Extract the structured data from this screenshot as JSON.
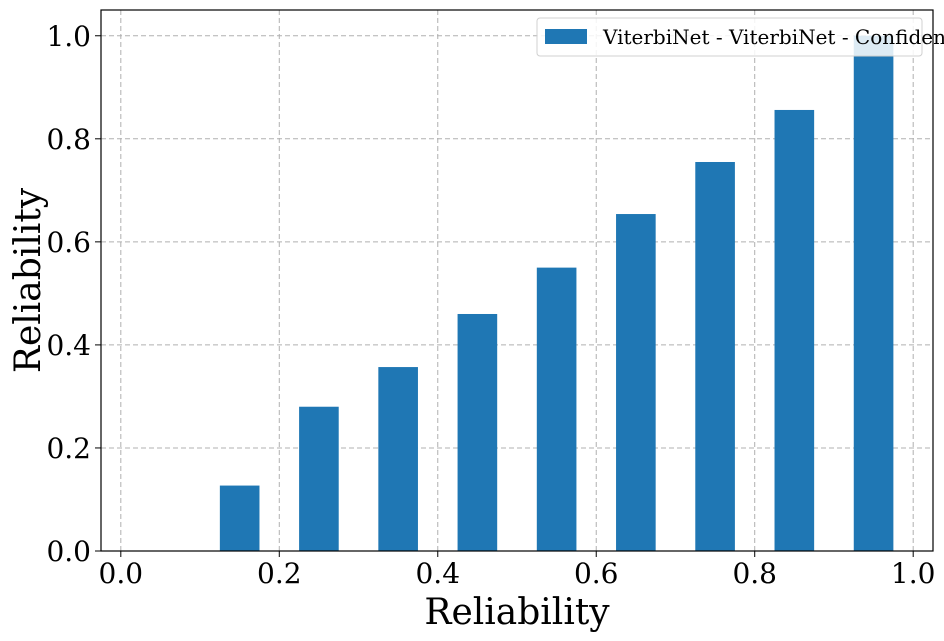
{
  "chart_data": {
    "type": "bar",
    "xlabel": "Reliability",
    "ylabel": "Reliability",
    "xlim": [
      -0.025,
      1.025
    ],
    "ylim": [
      0,
      1.05
    ],
    "xticks": [
      "0.0",
      "0.2",
      "0.4",
      "0.6",
      "0.8",
      "1.0"
    ],
    "yticks": [
      "0.0",
      "0.2",
      "0.4",
      "0.6",
      "0.8",
      "1.0"
    ],
    "grid": true,
    "legend_position": "top-right",
    "bar_width": 0.05,
    "series": [
      {
        "name": "ViterbiNet - ViterbiNet - Confidence",
        "color": "#1f77b4",
        "x": [
          0.15,
          0.25,
          0.35,
          0.45,
          0.55,
          0.65,
          0.75,
          0.85,
          0.95
        ],
        "values": [
          0.127,
          0.28,
          0.357,
          0.46,
          0.55,
          0.654,
          0.755,
          0.856,
          1.0
        ]
      }
    ]
  }
}
